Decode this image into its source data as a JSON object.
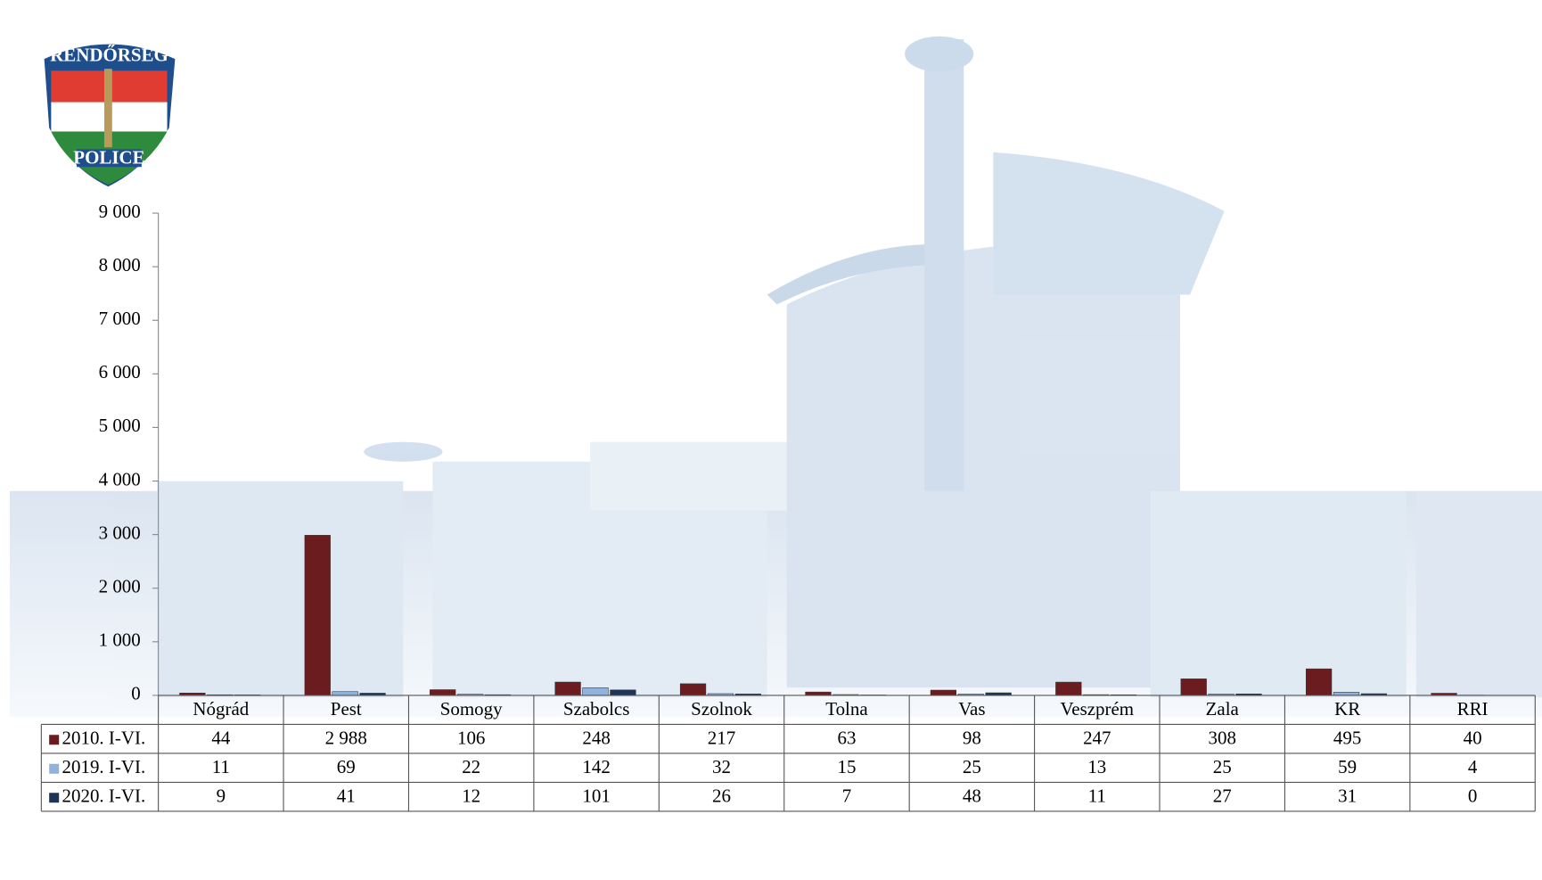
{
  "logo": {
    "top": "RENDŐRSÉG",
    "bottom": "POLICE"
  },
  "chart_data": {
    "type": "bar",
    "categories": [
      "Nógrád",
      "Pest",
      "Somogy",
      "Szabolcs",
      "Szolnok",
      "Tolna",
      "Vas",
      "Veszprém",
      "Zala",
      "KR",
      "RRI"
    ],
    "series": [
      {
        "name": "2010. I-VI.",
        "color": "#6b1c1f",
        "values": [
          44,
          2988,
          106,
          248,
          217,
          63,
          98,
          247,
          308,
          495,
          40
        ],
        "value_labels": [
          "44",
          "2 988",
          "106",
          "248",
          "217",
          "63",
          "98",
          "247",
          "308",
          "495",
          "40"
        ]
      },
      {
        "name": "2019. I-VI.",
        "color": "#8fb3dc",
        "values": [
          11,
          69,
          22,
          142,
          32,
          15,
          25,
          13,
          25,
          59,
          4
        ]
      },
      {
        "name": "2020. I-VI.",
        "color": "#1d3556",
        "values": [
          9,
          41,
          12,
          101,
          26,
          7,
          48,
          11,
          27,
          31,
          0
        ]
      }
    ],
    "ylim": [
      0,
      9000
    ],
    "yticks": [
      0,
      {
        "value": 1000,
        "label": "1 000"
      },
      {
        "value": 2000,
        "label": "2 000"
      },
      {
        "value": 3000,
        "label": "3 000"
      },
      {
        "value": 4000,
        "label": "4 000"
      },
      {
        "value": 5000,
        "label": "5 000"
      },
      {
        "value": 6000,
        "label": "6 000"
      },
      {
        "value": 7000,
        "label": "7 000"
      },
      {
        "value": 8000,
        "label": "8 000"
      },
      {
        "value": 9000,
        "label": "9 000"
      }
    ],
    "grid": false
  }
}
